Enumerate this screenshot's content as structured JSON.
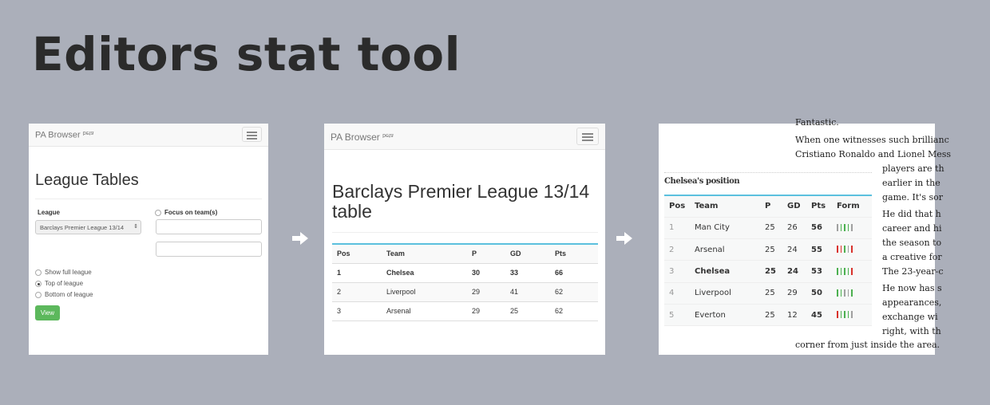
{
  "title": "Editors stat tool",
  "colors": {
    "background": "#abafba",
    "accent_green": "#5cb85c",
    "table_rule": "#5bc0de",
    "win": "#4cb050",
    "loss": "#d9322c",
    "draw": "#a0a0a0"
  },
  "panel1": {
    "brand": "PA Browser",
    "brand_sup": "beta",
    "heading": "League Tables",
    "league_label": "League",
    "league_value": "Barclays Premier League 13/14",
    "focus_label": "Focus on team(s)",
    "team1": "",
    "team2": "",
    "options": [
      {
        "label": "Show full league",
        "selected": false
      },
      {
        "label": "Top of league",
        "selected": true
      },
      {
        "label": "Bottom of league",
        "selected": false
      }
    ],
    "view_button": "View"
  },
  "panel2": {
    "brand": "PA Browser",
    "brand_sup": "beta",
    "heading": "Barclays Premier League 13/14 table",
    "headers": [
      "Pos",
      "Team",
      "P",
      "GD",
      "Pts"
    ],
    "rows": [
      [
        "1",
        "Chelsea",
        "30",
        "33",
        "66"
      ],
      [
        "2",
        "Liverpool",
        "29",
        "41",
        "62"
      ],
      [
        "3",
        "Arsenal",
        "29",
        "25",
        "62"
      ]
    ]
  },
  "panel3": {
    "caption": "Chelsea's position",
    "headers": [
      "Pos",
      "Team",
      "P",
      "GD",
      "Pts",
      "Form"
    ],
    "rows": [
      {
        "pos": "1",
        "team": "Man City",
        "p": "25",
        "gd": "26",
        "pts": "56",
        "form": [
          "D",
          "W",
          "W",
          "W",
          "D"
        ]
      },
      {
        "pos": "2",
        "team": "Arsenal",
        "p": "25",
        "gd": "24",
        "pts": "55",
        "form": [
          "L",
          "L",
          "W",
          "D",
          "L"
        ]
      },
      {
        "pos": "3",
        "team": "Chelsea",
        "p": "25",
        "gd": "24",
        "pts": "53",
        "form": [
          "W",
          "W",
          "W",
          "W",
          "L"
        ]
      },
      {
        "pos": "4",
        "team": "Liverpool",
        "p": "25",
        "gd": "29",
        "pts": "50",
        "form": [
          "W",
          "W",
          "D",
          "D",
          "W"
        ]
      },
      {
        "pos": "5",
        "team": "Everton",
        "p": "25",
        "gd": "12",
        "pts": "45",
        "form": [
          "L",
          "W",
          "W",
          "W",
          "D"
        ]
      }
    ],
    "article_lines": [
      "Fantastic.",
      "When one witnesses such brillianc",
      "Cristiano Ronaldo and Lionel Mess",
      "players are th",
      "earlier in the",
      "game. It's sor",
      "He did that h",
      "career and hi",
      "the season to",
      "a creative for",
      "The 23-year-c",
      "He now has s",
      "appearances,",
      "exchange wi",
      "right, with th",
      "corner from just inside the area."
    ]
  }
}
